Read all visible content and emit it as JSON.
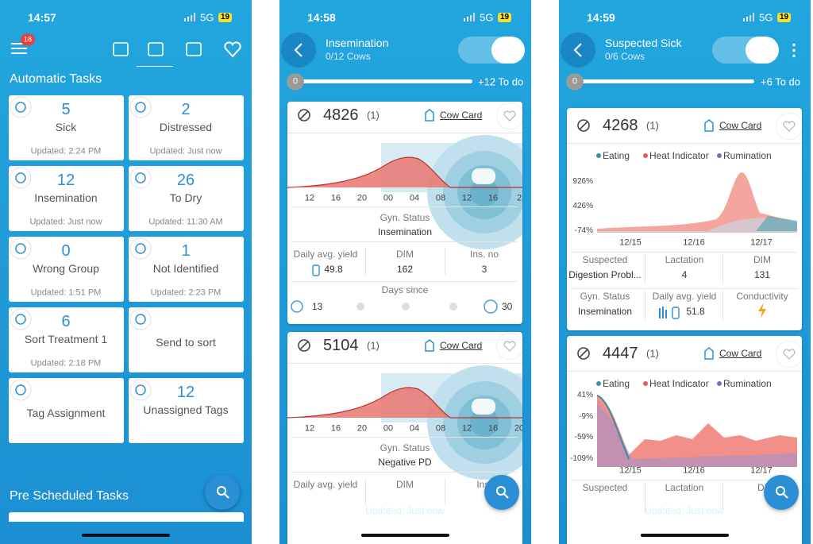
{
  "screens": [
    {
      "status": {
        "time": "14:57",
        "network": "5G",
        "battery": 19
      },
      "badge": 18,
      "heading": "Automatic Tasks",
      "tasks": [
        {
          "count": 5,
          "label": "Sick",
          "updated": "Updated: 2:24 PM"
        },
        {
          "count": 2,
          "label": "Distressed",
          "updated": "Updated: Just now"
        },
        {
          "count": 12,
          "label": "Insemination",
          "updated": "Updated: Just now"
        },
        {
          "count": 26,
          "label": "To Dry",
          "updated": "Updated: 11:30 AM"
        },
        {
          "count": 0,
          "label": "Wrong Group",
          "updated": "Updated: 1:51 PM"
        },
        {
          "count": 1,
          "label": "Not Identified",
          "updated": "Updated: 2:23 PM"
        },
        {
          "count": 6,
          "label": "Sort Treatment 1",
          "updated": "Updated: 2:18 PM"
        },
        {
          "label": "Send to sort"
        },
        {
          "label": "Tag Assignment"
        },
        {
          "count": 12,
          "label": "Unassigned Tags"
        }
      ],
      "footer_heading": "Pre Scheduled Tasks"
    },
    {
      "status": {
        "time": "14:58",
        "network": "5G",
        "battery": 19
      },
      "title": "Insemination",
      "subtitle": "0/12 Cows",
      "progress": 0,
      "todo": "+12 To do",
      "cards": [
        {
          "cow": 4826,
          "count": "(1)",
          "link": "Cow Card",
          "xticks": [
            12,
            16,
            20,
            "00",
            "04",
            "08",
            12,
            16,
            2
          ],
          "status_label": "Gyn. Status",
          "status": "Insemination",
          "stats": [
            {
              "label": "Daily avg. yield",
              "value": 49.8
            },
            {
              "label": "DIM",
              "value": 162
            },
            {
              "label": "Ins. no",
              "value": 3
            }
          ],
          "days_since_label": "Days since",
          "days": [
            13,
            30
          ]
        },
        {
          "cow": 5104,
          "count": "(1)",
          "link": "Cow Card",
          "xticks": [
            12,
            16,
            20,
            "00",
            "04",
            "08",
            12,
            16,
            20
          ],
          "status_label": "Gyn. Status",
          "status": "Negative PD",
          "stats": [
            {
              "label": "Daily avg. yield"
            },
            {
              "label": "DIM"
            },
            {
              "label": "Ins."
            }
          ]
        }
      ],
      "footer": "Updated: Just now"
    },
    {
      "status": {
        "time": "14:59",
        "network": "5G",
        "battery": 19
      },
      "title": "Suspected Sick",
      "subtitle": "0/6 Cows",
      "progress": 0,
      "todo": "+6 To do",
      "cards": [
        {
          "cow": 4268,
          "count": "(1)",
          "link": "Cow Card",
          "legend": [
            "Eating",
            "Heat Indicator",
            "Rumination"
          ],
          "yticks": [
            "926%",
            "426%",
            "-74%"
          ],
          "xticks": [
            "12/15",
            "12/16",
            "12/17"
          ],
          "rows": [
            [
              {
                "label": "Suspected",
                "value": "Digestion Probl..."
              },
              {
                "label": "Lactation",
                "value": 4
              },
              {
                "label": "DIM",
                "value": 131
              }
            ],
            [
              {
                "label": "Gyn. Status",
                "value": "Insemination"
              },
              {
                "label": "Daily avg. yield",
                "value": 51.8
              },
              {
                "label": "Conductivity"
              }
            ]
          ]
        },
        {
          "cow": 4447,
          "count": "(1)",
          "link": "Cow Card",
          "legend": [
            "Eating",
            "Heat Indicator",
            "Rumination"
          ],
          "yticks": [
            "41%",
            "-9%",
            "-59%",
            "-109%"
          ],
          "xticks": [
            "12/15",
            "12/16",
            "12/17"
          ],
          "rows": [
            [
              {
                "label": "Suspected"
              },
              {
                "label": "Lactation"
              },
              {
                "label": "DI"
              }
            ]
          ]
        }
      ],
      "footer": "Updated: Just now"
    }
  ]
}
